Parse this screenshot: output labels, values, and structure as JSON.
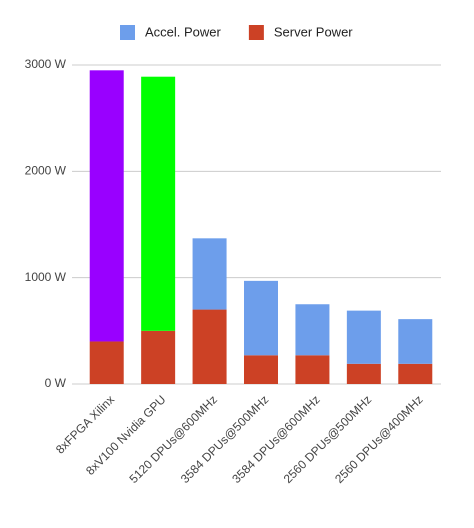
{
  "chart_data": {
    "type": "stacked-bar",
    "categories": [
      "8xFPGA Xilinx",
      "8xV100 Nvidia GPU",
      "5120 DPUs@600MHz",
      "3584 DPUs@500MHz",
      "3584 DPUs@600MHz",
      "2560 DPUs@500MHz",
      "2560 DPUs@400MHz"
    ],
    "series": [
      {
        "name": "Server Power",
        "color": "#cc4125",
        "values": [
          400,
          500,
          700,
          270,
          270,
          190,
          190
        ]
      },
      {
        "name": "Accel. Power",
        "color": "#6d9eeb",
        "colors": [
          "#9900ff",
          "#00ff00",
          "#6d9eeb",
          "#6d9eeb",
          "#6d9eeb",
          "#6d9eeb",
          "#6d9eeb"
        ],
        "values": [
          2550,
          2390,
          670,
          700,
          480,
          500,
          420
        ]
      }
    ],
    "legend_order": [
      1,
      0
    ],
    "ylim": [
      0,
      3000
    ],
    "yticks": [
      {
        "value": 0,
        "label": "0 W"
      },
      {
        "value": 1000,
        "label": "1000 W"
      },
      {
        "value": 2000,
        "label": "2000 W"
      },
      {
        "value": 3000,
        "label": "3000 W"
      }
    ],
    "grid": true
  }
}
